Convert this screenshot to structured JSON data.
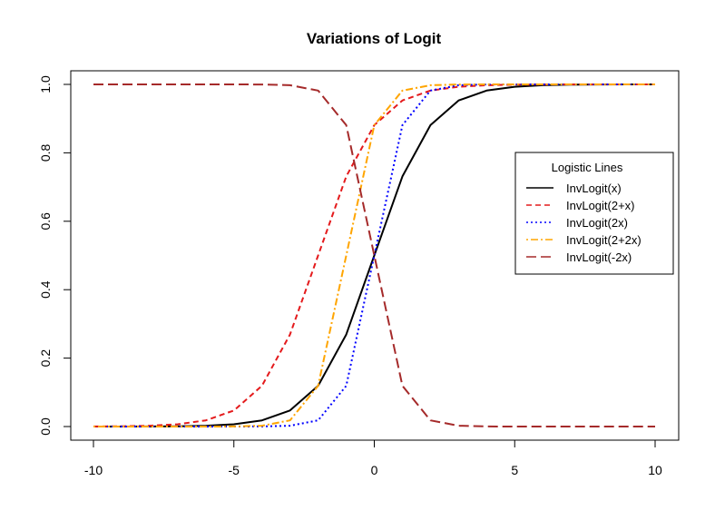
{
  "chart_data": {
    "type": "line",
    "title": "Variations of Logit",
    "xlabel": "",
    "ylabel": "",
    "xlim": [
      -10,
      10
    ],
    "ylim": [
      0,
      1
    ],
    "grid": false,
    "x_ticks": [
      -10,
      -5,
      0,
      5,
      10
    ],
    "x_tick_labels": [
      "-10",
      "-5",
      "0",
      "5",
      "10"
    ],
    "y_ticks": [
      0,
      0.2,
      0.4,
      0.6,
      0.8,
      1
    ],
    "y_tick_labels": [
      "0.0",
      "0.2",
      "0.4",
      "0.6",
      "0.8",
      "1.0"
    ],
    "legend": {
      "title": "Logistic Lines",
      "placement": "right",
      "entries": [
        "InvLogit(x)",
        "InvLogit(2+x)",
        "InvLogit(2x)",
        "InvLogit(2+2x)",
        "InvLogit(-2x)"
      ]
    },
    "x": [
      -10,
      -9,
      -8,
      -7,
      -6,
      -5,
      -4,
      -3,
      -2,
      -1,
      0,
      1,
      2,
      3,
      4,
      5,
      6,
      7,
      8,
      9,
      10
    ],
    "series": [
      {
        "name": "InvLogit(x)",
        "color": "#000000",
        "dash": "solid",
        "values": [
          5e-05,
          0.00012,
          0.00034,
          0.0009,
          0.0025,
          0.0067,
          0.018,
          0.047,
          0.119,
          0.269,
          0.5,
          0.731,
          0.881,
          0.953,
          0.982,
          0.993,
          0.9975,
          0.9991,
          0.9997,
          0.9999,
          1.0
        ]
      },
      {
        "name": "InvLogit(2+x)",
        "color": "#e41a1c",
        "dash": "dashed",
        "values": [
          0.0003,
          0.0009,
          0.0025,
          0.0067,
          0.018,
          0.047,
          0.119,
          0.269,
          0.5,
          0.731,
          0.881,
          0.953,
          0.982,
          0.993,
          0.9975,
          0.9991,
          0.9997,
          0.9999,
          1.0,
          1.0,
          1.0
        ]
      },
      {
        "name": "InvLogit(2x)",
        "color": "#0000ff",
        "dash": "dotted",
        "values": [
          0.0,
          0.0,
          0.0,
          0.0,
          0.0,
          5e-05,
          0.0003,
          0.0025,
          0.018,
          0.119,
          0.5,
          0.881,
          0.982,
          0.9975,
          0.9997,
          1.0,
          1.0,
          1.0,
          1.0,
          1.0,
          1.0
        ]
      },
      {
        "name": "InvLogit(2+2x)",
        "color": "#ffa500",
        "dash": "dotdash",
        "values": [
          0.0,
          0.0,
          0.0,
          0.0,
          0.0,
          0.0003,
          0.0025,
          0.018,
          0.119,
          0.5,
          0.881,
          0.982,
          0.9975,
          0.9997,
          1.0,
          1.0,
          1.0,
          1.0,
          1.0,
          1.0,
          1.0
        ]
      },
      {
        "name": "InvLogit(-2x)",
        "color": "#a52a2a",
        "dash": "longdash",
        "values": [
          1.0,
          1.0,
          1.0,
          1.0,
          1.0,
          0.99995,
          0.9997,
          0.9975,
          0.982,
          0.881,
          0.5,
          0.119,
          0.018,
          0.0025,
          0.0003,
          5e-05,
          0.0,
          0.0,
          0.0,
          0.0,
          0.0
        ]
      }
    ]
  }
}
